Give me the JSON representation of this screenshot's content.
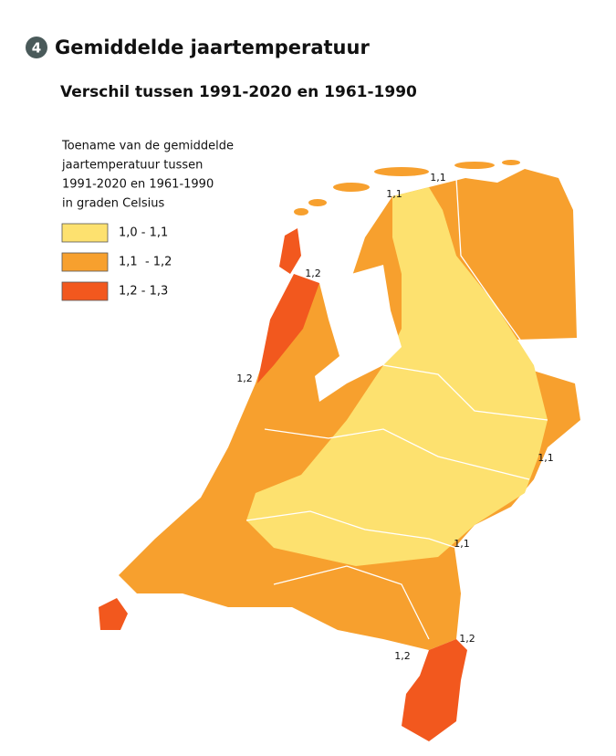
{
  "header": {
    "badge": "4",
    "title": "Gemiddelde jaartemperatuur",
    "subtitle": "Verschil tussen 1991-2020 en 1961-1990"
  },
  "legend": {
    "title_lines": [
      "Toename van de gemiddelde",
      "jaartemperatuur tussen",
      "1991-2020 en 1961-1990",
      "in graden Celsius"
    ],
    "items": [
      {
        "label": "1,0 - 1,1",
        "color": "#fde16f"
      },
      {
        "label": "1,1  - 1,2",
        "color": "#f7a02e"
      },
      {
        "label": "1,2 - 1,3",
        "color": "#f2581e"
      }
    ]
  },
  "map_labels": [
    "1,1",
    "1,1",
    "1,2",
    "1,2",
    "1,1",
    "1,1",
    "1,2",
    "1,2"
  ]
}
